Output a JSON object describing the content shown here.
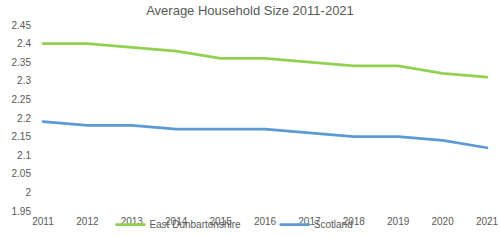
{
  "chart_data": {
    "type": "line",
    "title": "Average Household Size 2011-2021",
    "categories": [
      "2011",
      "2012",
      "2013",
      "2014",
      "2015",
      "2016",
      "2017",
      "2018",
      "2019",
      "2020",
      "2021"
    ],
    "series": [
      {
        "name": "East Dunbartonshire",
        "color": "#92d050",
        "values": [
          2.4,
          2.4,
          2.39,
          2.38,
          2.36,
          2.36,
          2.35,
          2.34,
          2.34,
          2.32,
          2.31
        ]
      },
      {
        "name": "Scotland",
        "color": "#5b9bd5",
        "values": [
          2.19,
          2.18,
          2.18,
          2.17,
          2.17,
          2.17,
          2.16,
          2.15,
          2.15,
          2.14,
          2.12
        ]
      }
    ],
    "ylim": [
      1.95,
      2.45
    ],
    "yticks": [
      1.95,
      2,
      2.05,
      2.1,
      2.15,
      2.2,
      2.25,
      2.3,
      2.35,
      2.4,
      2.45
    ],
    "grid": false,
    "legend": "bottom"
  }
}
